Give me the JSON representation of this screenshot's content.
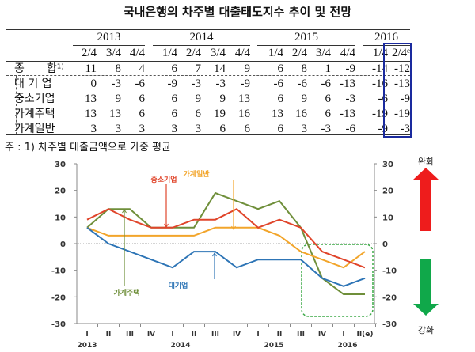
{
  "title": "국내은행의 차주별 대출태도지수 추이 및 전망",
  "table": {
    "years": [
      {
        "label": "2013",
        "span": 3
      },
      {
        "label": "2014",
        "span": 4
      },
      {
        "label": "2015",
        "span": 4
      },
      {
        "label": "2016",
        "span": 2
      }
    ],
    "quarters": [
      "2/4",
      "3/4",
      "4/4",
      "1/4",
      "2/4",
      "3/4",
      "4/4",
      "1/4",
      "2/4",
      "3/4",
      "4/4",
      "1/4",
      "2/4ᵉ"
    ],
    "rows": [
      {
        "label": "종　　합¹⁾",
        "values": [
          11,
          8,
          4,
          6,
          7,
          14,
          9,
          6,
          8,
          1,
          -9,
          -14,
          -12
        ]
      },
      {
        "label": "대 기 업",
        "values": [
          0,
          -3,
          -6,
          -9,
          -3,
          -3,
          -9,
          -6,
          -6,
          -6,
          -13,
          -16,
          -13
        ]
      },
      {
        "label": "중소기업",
        "values": [
          13,
          9,
          6,
          6,
          9,
          9,
          13,
          6,
          9,
          6,
          -3,
          -6,
          -9
        ]
      },
      {
        "label": "가계주택",
        "values": [
          13,
          13,
          6,
          6,
          6,
          19,
          16,
          13,
          16,
          6,
          -13,
          -19,
          -19
        ]
      },
      {
        "label": "가계일반",
        "values": [
          3,
          3,
          3,
          3,
          3,
          6,
          6,
          6,
          3,
          -3,
          -6,
          -9,
          -3
        ]
      }
    ],
    "highlight_color": "#1a2a9e"
  },
  "note": "주 :  1) 차주별 대출금액으로 가중 평균",
  "chart_data": {
    "type": "line",
    "x": [
      "I",
      "II",
      "III",
      "IV",
      "I",
      "II",
      "III",
      "IV",
      "I",
      "II",
      "III",
      "IV",
      "I",
      "II(e)"
    ],
    "year_labels": [
      {
        "label": "2013",
        "at": 0
      },
      {
        "label": "2014",
        "at": 4
      },
      {
        "label": "2015",
        "at": 8
      },
      {
        "label": "2016",
        "at": 12
      }
    ],
    "ylim": [
      -30,
      30
    ],
    "yticks": [
      30,
      20,
      10,
      0,
      -10,
      -20,
      -30
    ],
    "series": [
      {
        "name": "대기업",
        "color": "#2e75b6",
        "values": [
          6,
          0,
          -3,
          -6,
          -9,
          -3,
          -3,
          -9,
          -6,
          -6,
          -6,
          -13,
          -16,
          -13
        ]
      },
      {
        "name": "중소기업",
        "color": "#e0452b",
        "values": [
          9,
          13,
          9,
          6,
          6,
          9,
          9,
          13,
          6,
          9,
          6,
          -3,
          -6,
          -9
        ]
      },
      {
        "name": "가계주택",
        "color": "#6f8f3a",
        "values": [
          6,
          13,
          13,
          6,
          6,
          6,
          19,
          16,
          13,
          16,
          6,
          -13,
          -19,
          -19
        ]
      },
      {
        "name": "가계일반",
        "color": "#f2a52b",
        "values": [
          6,
          3,
          3,
          3,
          3,
          3,
          6,
          6,
          6,
          3,
          -3,
          -6,
          -9,
          -3
        ]
      }
    ],
    "up_label": "완화",
    "down_label": "강화",
    "up_color": "#ee1c1c",
    "down_color": "#10a84a"
  }
}
